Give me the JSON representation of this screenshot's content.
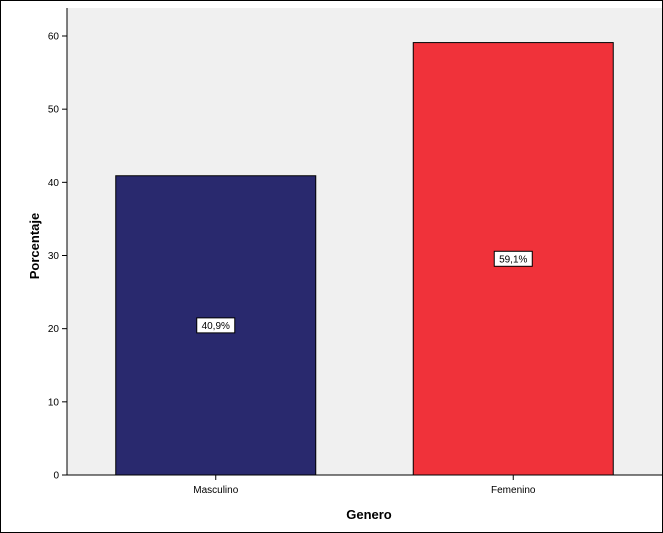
{
  "chart_data": {
    "type": "bar",
    "title": "",
    "xlabel": "Genero",
    "ylabel": "Porcentaje",
    "categories": [
      "Masculino",
      "Femenino"
    ],
    "values": [
      40.9,
      59.1
    ],
    "data_labels": [
      "40,9%",
      "59,1%"
    ],
    "colors": [
      "#29296e",
      "#f0323a"
    ],
    "plot_background": "#f0f0f0",
    "ylim": [
      0,
      60
    ],
    "yticks": [
      0,
      10,
      20,
      30,
      40,
      50,
      60
    ],
    "ytick_labels": [
      "0",
      "10",
      "20",
      "30",
      "40",
      "50",
      "60"
    ],
    "grid": false,
    "legend": "none"
  }
}
